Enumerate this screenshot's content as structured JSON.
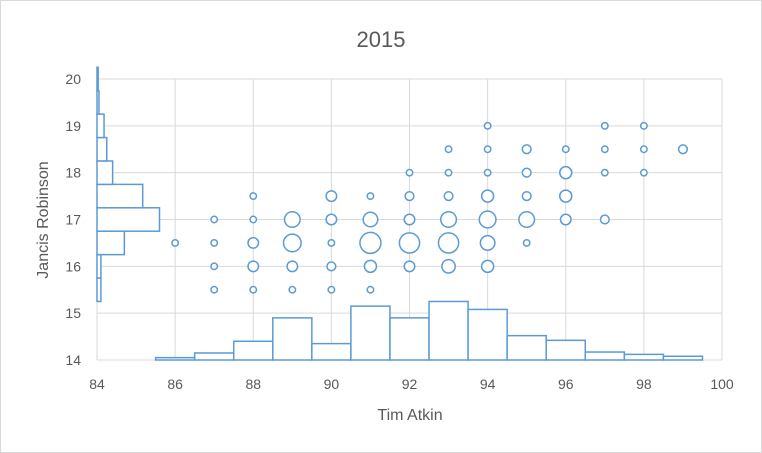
{
  "chart_data": {
    "type": "scatter",
    "title": "2015",
    "xlabel": "Tim Atkin",
    "ylabel": "Jancis Robinson",
    "xlim": [
      84,
      100
    ],
    "ylim": [
      14,
      20
    ],
    "x_ticks": [
      "84",
      "86",
      "88",
      "90",
      "92",
      "94",
      "96",
      "98",
      "100"
    ],
    "y_ticks": [
      "14",
      "15",
      "16",
      "17",
      "18",
      "19",
      "20"
    ],
    "grid": true,
    "accent_color": "#5b9bd5",
    "bubbles": [
      {
        "x": 86,
        "y": 16.5,
        "size": 1
      },
      {
        "x": 87,
        "y": 15.5,
        "size": 1
      },
      {
        "x": 87,
        "y": 16,
        "size": 1
      },
      {
        "x": 87,
        "y": 16.5,
        "size": 1
      },
      {
        "x": 87,
        "y": 17,
        "size": 1
      },
      {
        "x": 88,
        "y": 15.5,
        "size": 1
      },
      {
        "x": 88,
        "y": 16,
        "size": 3
      },
      {
        "x": 88,
        "y": 16.5,
        "size": 3
      },
      {
        "x": 88,
        "y": 17,
        "size": 1
      },
      {
        "x": 88,
        "y": 17.5,
        "size": 1
      },
      {
        "x": 89,
        "y": 15.5,
        "size": 1
      },
      {
        "x": 89,
        "y": 16,
        "size": 3
      },
      {
        "x": 89,
        "y": 16.5,
        "size": 9
      },
      {
        "x": 89,
        "y": 17,
        "size": 7
      },
      {
        "x": 90,
        "y": 15.5,
        "size": 1
      },
      {
        "x": 90,
        "y": 16,
        "size": 2
      },
      {
        "x": 90,
        "y": 16.5,
        "size": 1
      },
      {
        "x": 90,
        "y": 17,
        "size": 3
      },
      {
        "x": 90,
        "y": 17.5,
        "size": 3
      },
      {
        "x": 91,
        "y": 15.5,
        "size": 1
      },
      {
        "x": 91,
        "y": 16,
        "size": 4
      },
      {
        "x": 91,
        "y": 16.5,
        "size": 13
      },
      {
        "x": 91,
        "y": 17,
        "size": 6
      },
      {
        "x": 91,
        "y": 17.5,
        "size": 1
      },
      {
        "x": 92,
        "y": 16,
        "size": 3
      },
      {
        "x": 92,
        "y": 16.5,
        "size": 12
      },
      {
        "x": 92,
        "y": 17,
        "size": 3
      },
      {
        "x": 92,
        "y": 17.5,
        "size": 2
      },
      {
        "x": 92,
        "y": 18,
        "size": 1
      },
      {
        "x": 93,
        "y": 16,
        "size": 5
      },
      {
        "x": 93,
        "y": 16.5,
        "size": 12
      },
      {
        "x": 93,
        "y": 17,
        "size": 7
      },
      {
        "x": 93,
        "y": 17.5,
        "size": 2
      },
      {
        "x": 93,
        "y": 18,
        "size": 1
      },
      {
        "x": 93,
        "y": 18.5,
        "size": 1
      },
      {
        "x": 94,
        "y": 16,
        "size": 4
      },
      {
        "x": 94,
        "y": 16.5,
        "size": 6
      },
      {
        "x": 94,
        "y": 17,
        "size": 8
      },
      {
        "x": 94,
        "y": 17.5,
        "size": 4
      },
      {
        "x": 94,
        "y": 18,
        "size": 1
      },
      {
        "x": 94,
        "y": 18.5,
        "size": 1
      },
      {
        "x": 94,
        "y": 19,
        "size": 1
      },
      {
        "x": 95,
        "y": 16.5,
        "size": 1
      },
      {
        "x": 95,
        "y": 17,
        "size": 7
      },
      {
        "x": 95,
        "y": 17.5,
        "size": 2
      },
      {
        "x": 95,
        "y": 18,
        "size": 2
      },
      {
        "x": 95,
        "y": 18.5,
        "size": 2
      },
      {
        "x": 96,
        "y": 17,
        "size": 3
      },
      {
        "x": 96,
        "y": 17.5,
        "size": 4
      },
      {
        "x": 96,
        "y": 18,
        "size": 4
      },
      {
        "x": 96,
        "y": 18.5,
        "size": 1
      },
      {
        "x": 97,
        "y": 17,
        "size": 2
      },
      {
        "x": 97,
        "y": 18,
        "size": 1
      },
      {
        "x": 97,
        "y": 18.5,
        "size": 1
      },
      {
        "x": 97,
        "y": 19,
        "size": 1
      },
      {
        "x": 98,
        "y": 18,
        "size": 1
      },
      {
        "x": 98,
        "y": 18.5,
        "size": 1
      },
      {
        "x": 98,
        "y": 19,
        "size": 1
      },
      {
        "x": 99,
        "y": 18.5,
        "size": 2
      }
    ],
    "x_histogram": [
      {
        "x0": 85.5,
        "x1": 86.5,
        "top": 14.05
      },
      {
        "x0": 86.5,
        "x1": 87.5,
        "top": 14.15
      },
      {
        "x0": 87.5,
        "x1": 88.5,
        "top": 14.4
      },
      {
        "x0": 88.5,
        "x1": 89.5,
        "top": 14.9
      },
      {
        "x0": 89.5,
        "x1": 90.5,
        "top": 14.35
      },
      {
        "x0": 90.5,
        "x1": 91.5,
        "top": 15.15
      },
      {
        "x0": 91.5,
        "x1": 92.5,
        "top": 14.9
      },
      {
        "x0": 92.5,
        "x1": 93.5,
        "top": 15.25
      },
      {
        "x0": 93.5,
        "x1": 94.5,
        "top": 15.08
      },
      {
        "x0": 94.5,
        "x1": 95.5,
        "top": 14.52
      },
      {
        "x0": 95.5,
        "x1": 96.5,
        "top": 14.42
      },
      {
        "x0": 96.5,
        "x1": 97.5,
        "top": 14.17
      },
      {
        "x0": 97.5,
        "x1": 98.5,
        "top": 14.12
      },
      {
        "x0": 98.5,
        "x1": 99.5,
        "top": 14.08
      }
    ],
    "y_histogram": [
      {
        "y0": 15.25,
        "y1": 15.75,
        "right": 84.1
      },
      {
        "y0": 15.75,
        "y1": 16.25,
        "right": 84.1
      },
      {
        "y0": 16.25,
        "y1": 16.75,
        "right": 84.7
      },
      {
        "y0": 16.75,
        "y1": 17.25,
        "right": 85.6
      },
      {
        "y0": 17.25,
        "y1": 17.75,
        "right": 85.17
      },
      {
        "y0": 17.75,
        "y1": 18.25,
        "right": 84.4
      },
      {
        "y0": 18.25,
        "y1": 18.75,
        "right": 84.25
      },
      {
        "y0": 18.75,
        "y1": 19.25,
        "right": 84.18
      },
      {
        "y0": 19.25,
        "y1": 19.75,
        "right": 84.05
      },
      {
        "y0": 19.75,
        "y1": 20.25,
        "right": 84.03
      }
    ]
  }
}
